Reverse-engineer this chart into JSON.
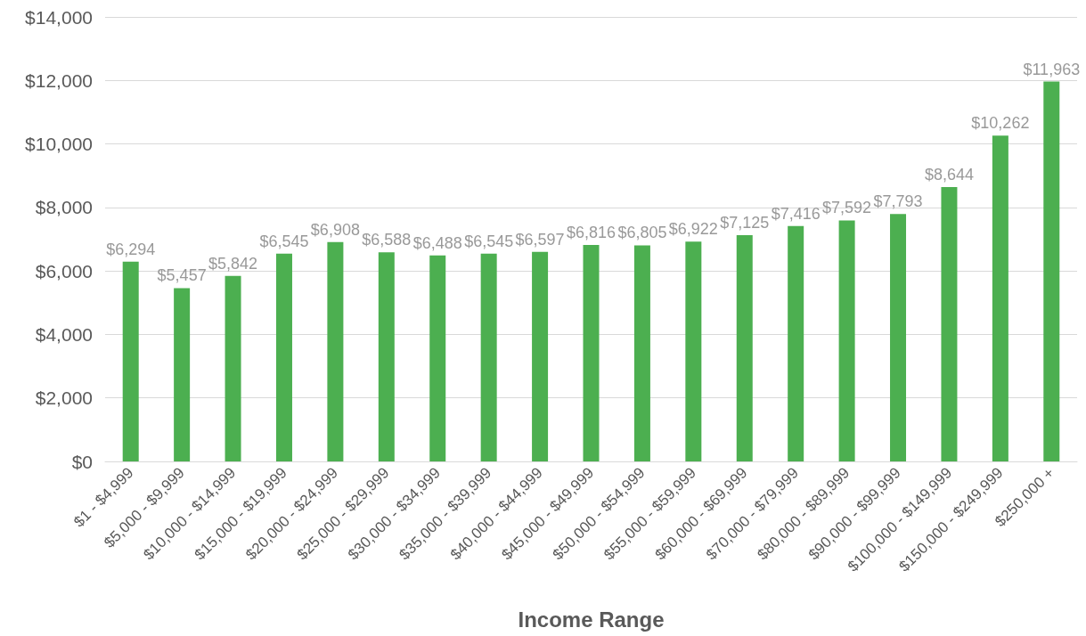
{
  "chart_data": {
    "type": "bar",
    "xlabel": "Income Range",
    "categories": [
      "$1 - $4,999",
      "$5,000 - $9,999",
      "$10,000 - $14,999",
      "$15,000 - $19,999",
      "$20,000 - $24,999",
      "$25,000 - $29,999",
      "$30,000 - $34,999",
      "$35,000 - $39,999",
      "$40,000 - $44,999",
      "$45,000 - $49,999",
      "$50,000 - $54,999",
      "$55,000 - $59,999",
      "$60,000 - $69,999",
      "$70,000 - $79,999",
      "$80,000 - $89,999",
      "$90,000 - $99,999",
      "$100,000 - $149,999",
      "$150,000 - $249,999",
      "$250,000 +"
    ],
    "values": [
      6294,
      5457,
      5842,
      6545,
      6908,
      6588,
      6488,
      6545,
      6597,
      6816,
      6805,
      6922,
      7125,
      7416,
      7592,
      7793,
      8644,
      10262,
      11963
    ],
    "value_labels": [
      "$6,294",
      "$5,457",
      "$5,842",
      "$6,545",
      "$6,908",
      "$6,588",
      "$6,488",
      "$6,545",
      "$6,597",
      "$6,816",
      "$6,805",
      "$6,922",
      "$7,125",
      "$7,416",
      "$7,592",
      "$7,793",
      "$8,644",
      "$10,262",
      "$11,963"
    ],
    "color": "#4caf50",
    "ylim": [
      0,
      14000
    ],
    "yticks": [
      {
        "value": 0,
        "label": "$0"
      },
      {
        "value": 2000,
        "label": "$2,000"
      },
      {
        "value": 4000,
        "label": "$4,000"
      },
      {
        "value": 6000,
        "label": "$6,000"
      },
      {
        "value": 8000,
        "label": "$8,000"
      },
      {
        "value": 10000,
        "label": "$10,000"
      },
      {
        "value": 12000,
        "label": "$12,000"
      },
      {
        "value": 14000,
        "label": "$14,000"
      }
    ],
    "grid": "y"
  }
}
